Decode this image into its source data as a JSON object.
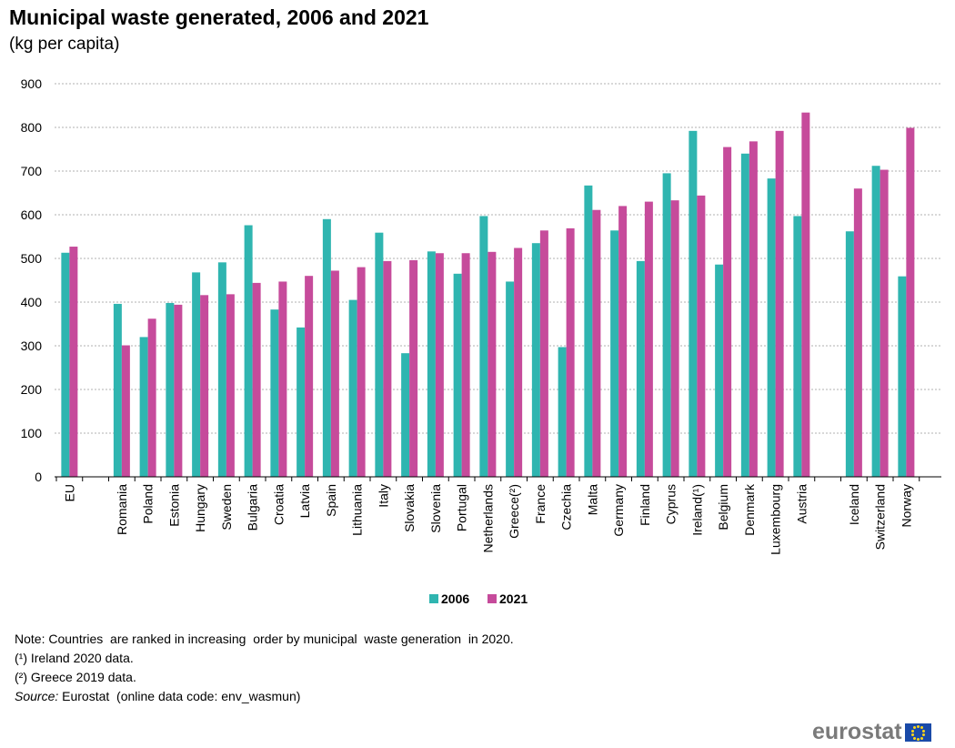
{
  "header": {
    "title": "Municipal waste generated, 2006 and 2021",
    "subtitle": "(kg per capita)"
  },
  "notes": {
    "note": "Note: Countries  are ranked in increasing  order by municipal  waste generation  in 2020.",
    "footnote1": "(¹) Ireland 2020 data.",
    "footnote2": "(²) Greece 2019 data.",
    "source_label": "Source:",
    "source_text": " Eurostat  (online data code: env_wasmun)"
  },
  "logo": {
    "text": "eurostat",
    "icon": "eu-flag-icon"
  },
  "colors": {
    "s2006": "#2fb5b0",
    "s2021": "#c64b9b",
    "grid": "#b0b0b0",
    "axis": "#000000"
  },
  "chart_data": {
    "type": "bar",
    "title": "Municipal waste generated, 2006 and 2021",
    "subtitle": "(kg per capita)",
    "ylim": [
      0,
      900
    ],
    "yticks": [
      0,
      100,
      200,
      300,
      400,
      500,
      600,
      700,
      800,
      900
    ],
    "grid": true,
    "legend_position": "bottom",
    "categories": [
      "EU",
      "",
      "Romania",
      "Poland",
      "Estonia",
      "Hungary",
      "Sweden",
      "Bulgaria",
      "Croatia",
      "Latvia",
      "Spain",
      "Lithuania",
      "Italy",
      "Slovakia",
      "Slovenia",
      "Portugal",
      "Netherlands",
      "Greece(²)",
      "France",
      "Czechia",
      "Malta",
      "Germany",
      "Finland",
      "Cyprus",
      "Ireland(¹)",
      "Belgium",
      "Denmark",
      "Luxembourg",
      "Austria",
      "",
      "Iceland",
      "Switzerland",
      "Norway"
    ],
    "series": [
      {
        "name": "2006",
        "values": [
          513,
          null,
          396,
          320,
          398,
          468,
          491,
          576,
          383,
          342,
          590,
          405,
          559,
          283,
          516,
          465,
          597,
          447,
          535,
          297,
          667,
          564,
          494,
          695,
          792,
          486,
          740,
          683,
          597,
          null,
          562,
          712,
          459
        ]
      },
      {
        "name": "2021",
        "values": [
          527,
          null,
          301,
          362,
          394,
          416,
          418,
          444,
          447,
          460,
          472,
          480,
          494,
          496,
          512,
          512,
          515,
          524,
          564,
          569,
          611,
          620,
          630,
          633,
          644,
          755,
          768,
          792,
          834,
          null,
          660,
          703,
          799
        ]
      }
    ]
  }
}
